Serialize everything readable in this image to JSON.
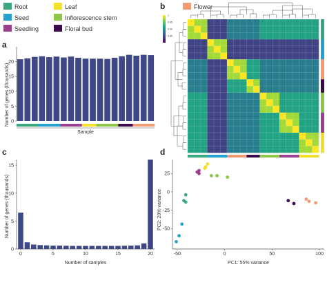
{
  "legend": {
    "items": [
      {
        "label": "Root",
        "color": "#3aa87c"
      },
      {
        "label": "Seed",
        "color": "#23a2d0"
      },
      {
        "label": "Seedling",
        "color": "#9b3f8f"
      },
      {
        "label": "Leaf",
        "color": "#f2e02a"
      },
      {
        "label": "Inflorescence stem",
        "color": "#8ec649"
      },
      {
        "label": "Floral bud",
        "color": "#3b0a4d"
      },
      {
        "label": "Flower",
        "color": "#f29a74"
      }
    ]
  },
  "panels": {
    "a": "a",
    "b": "b",
    "c": "c",
    "d": "d"
  },
  "chart_data": [
    {
      "panel": "a",
      "type": "bar",
      "xlabel": "Sample",
      "ylabel": "Number of genes (thousands)",
      "ylim": [
        0,
        25
      ],
      "yticks": [
        "0",
        "5",
        "10",
        "15",
        "20"
      ],
      "bar_color": "#3e4886",
      "values": [
        20.8,
        21.1,
        21.6,
        21.8,
        21.5,
        21.7,
        21.4,
        21.7,
        21.3,
        21.0,
        21.0,
        21.0,
        20.9,
        21.3,
        21.8,
        22.3,
        22.0,
        22.3,
        22.2
      ],
      "group_bar": [
        "#3aa87c",
        "#3aa87c",
        "#3aa87c",
        "#23a2d0",
        "#23a2d0",
        "#23a2d0",
        "#9b3f8f",
        "#9b3f8f",
        "#9b3f8f",
        "#f2e02a",
        "#f2e02a",
        "#8ec649",
        "#8ec649",
        "#8ec649",
        "#3b0a4d",
        "#3b0a4d",
        "#f29a74",
        "#f29a74",
        "#f29a74"
      ]
    },
    {
      "panel": "b",
      "type": "heatmap",
      "colorbar_ticks": [
        "1",
        "0.95",
        "0.90",
        "0.85"
      ],
      "colorbar_range": [
        0.8,
        1.0
      ],
      "n_samples": 20,
      "sample_groups": [
        "#3aa87c",
        "#3aa87c",
        "#3aa87c",
        "#23a2d0",
        "#23a2d0",
        "#23a2d0",
        "#f29a74",
        "#f29a74",
        "#f29a74",
        "#3b0a4d",
        "#3b0a4d",
        "#8ec649",
        "#8ec649",
        "#8ec649",
        "#9b3f8f",
        "#9b3f8f",
        "#9b3f8f",
        "#f2e02a",
        "#f2e02a",
        "#f2e02a"
      ]
    },
    {
      "panel": "c",
      "type": "bar",
      "xlabel": "Number of samples",
      "ylabel": "Number of genes (thousands)",
      "ylim": [
        0,
        16
      ],
      "xticks": [
        "0",
        "5",
        "10",
        "15",
        "20"
      ],
      "yticks": [
        "0",
        "5",
        "10",
        "15"
      ],
      "bar_color": "#3e4886",
      "x": [
        0,
        1,
        2,
        3,
        4,
        5,
        6,
        7,
        8,
        9,
        10,
        11,
        12,
        13,
        14,
        15,
        16,
        17,
        18,
        19,
        20
      ],
      "values": [
        6.5,
        1.2,
        0.8,
        0.7,
        0.65,
        0.6,
        0.6,
        0.58,
        0.55,
        0.55,
        0.55,
        0.55,
        0.55,
        0.55,
        0.55,
        0.55,
        0.58,
        0.6,
        0.65,
        1.0,
        16.0
      ]
    },
    {
      "panel": "d",
      "type": "scatter",
      "xlabel": "PC1: 55% variance",
      "ylabel": "PC2: 20% variance",
      "xlim": [
        -55,
        105
      ],
      "ylim": [
        -78,
        44
      ],
      "xticks": [
        "-50",
        "0",
        "50",
        "100"
      ],
      "yticks": [
        "-50",
        "-25",
        "0",
        "25"
      ],
      "points": [
        {
          "x": -29,
          "y": 27,
          "group": "Seedling"
        },
        {
          "x": -27,
          "y": 29,
          "group": "Seedling"
        },
        {
          "x": -27,
          "y": 25,
          "group": "Seedling"
        },
        {
          "x": -18,
          "y": 38,
          "group": "Leaf"
        },
        {
          "x": -20,
          "y": 34,
          "group": "Leaf"
        },
        {
          "x": -21,
          "y": 32,
          "group": "Leaf"
        },
        {
          "x": -14,
          "y": 22,
          "group": "Inflorescence stem"
        },
        {
          "x": -8,
          "y": 22,
          "group": "Inflorescence stem"
        },
        {
          "x": 3,
          "y": 20,
          "group": "Inflorescence stem"
        },
        {
          "x": -41,
          "y": -4,
          "group": "Root"
        },
        {
          "x": -41,
          "y": -14,
          "group": "Root"
        },
        {
          "x": -43,
          "y": -12,
          "group": "Root"
        },
        {
          "x": -45,
          "y": -44,
          "group": "Seed"
        },
        {
          "x": -48,
          "y": -60,
          "group": "Seed"
        },
        {
          "x": -51,
          "y": -68,
          "group": "Seed"
        },
        {
          "x": 67,
          "y": -12,
          "group": "Floral bud"
        },
        {
          "x": 73,
          "y": -16,
          "group": "Floral bud"
        },
        {
          "x": 86,
          "y": -10,
          "group": "Flower"
        },
        {
          "x": 89,
          "y": -13,
          "group": "Flower"
        },
        {
          "x": 96,
          "y": -15,
          "group": "Flower"
        }
      ]
    }
  ]
}
